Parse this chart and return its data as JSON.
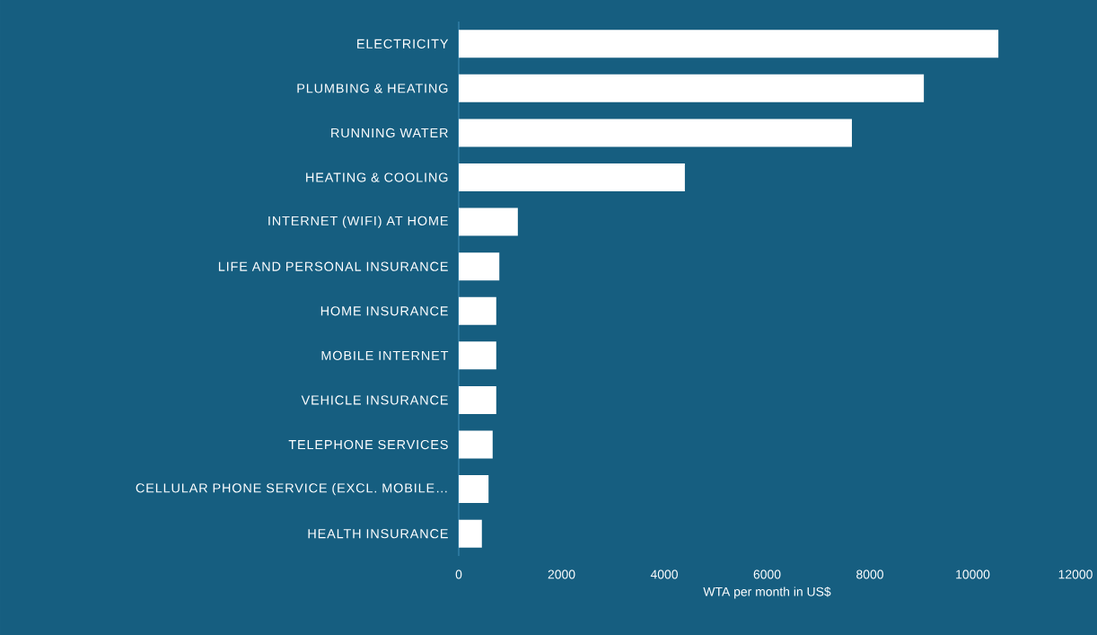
{
  "chart_data": {
    "type": "bar",
    "orientation": "horizontal",
    "categories": [
      "ELECTRICITY",
      "PLUMBING & HEATING",
      "RUNNING WATER",
      "HEATING & COOLING",
      "INTERNET (WIFI) AT HOME",
      "LIFE AND PERSONAL INSURANCE",
      "HOME INSURANCE",
      "MOBILE INTERNET",
      "VEHICLE INSURANCE",
      "TELEPHONE SERVICES",
      "CELLULAR PHONE SERVICE (EXCL. MOBILE…",
      "HEALTH INSURANCE"
    ],
    "values": [
      10500,
      9050,
      7650,
      4400,
      1150,
      790,
      730,
      730,
      730,
      660,
      580,
      450
    ],
    "color": "#ffffff",
    "xlim": [
      0,
      12000
    ],
    "xticks": [
      0,
      2000,
      4000,
      6000,
      8000,
      10000,
      12000
    ],
    "xlabel": "WTA per month in US$"
  }
}
